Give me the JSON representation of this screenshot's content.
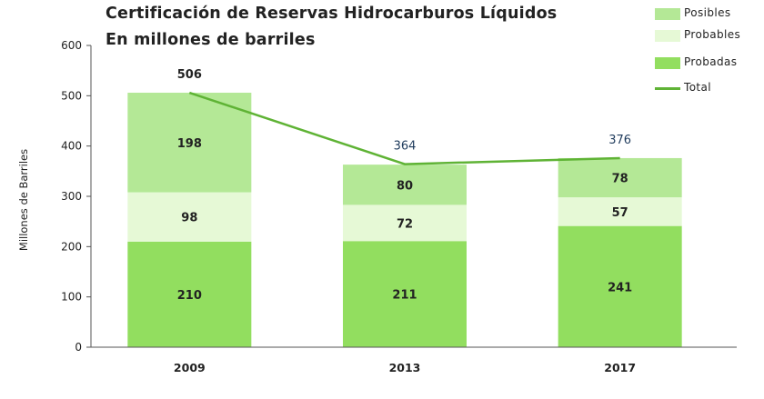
{
  "chart_data": {
    "type": "bar",
    "stacked": true,
    "title": "Certificación de Reservas Hidrocarburos Líquidos",
    "subtitle": "En millones de barriles",
    "ylabel": "Millones de Barriles",
    "xlabel": "",
    "ylim": [
      0,
      600
    ],
    "yticks": [
      0,
      100,
      200,
      300,
      400,
      500,
      600
    ],
    "grid": false,
    "legend_position": "top-right",
    "categories": [
      "2009",
      "2013",
      "2017"
    ],
    "series": [
      {
        "name": "Probadas",
        "values": [
          210,
          211,
          241
        ],
        "color": "#92de5f"
      },
      {
        "name": "Probables",
        "values": [
          98,
          72,
          57
        ],
        "color": "#e6f9d6"
      },
      {
        "name": "Posibles",
        "values": [
          198,
          80,
          78
        ],
        "color": "#b4e896"
      }
    ],
    "total": {
      "name": "Total",
      "values": [
        506,
        364,
        376
      ],
      "color": "#5fb335",
      "label_colors": [
        "#222222",
        "#1f3b5c",
        "#1f3b5c"
      ]
    },
    "legend": [
      "Posibles",
      "Probables",
      "Probadas",
      "Total"
    ]
  }
}
